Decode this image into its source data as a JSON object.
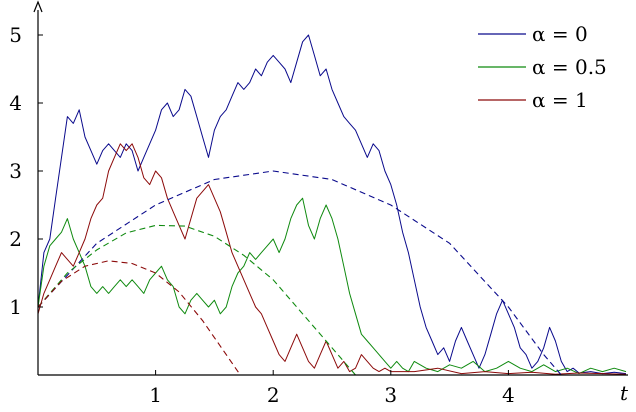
{
  "chart_data": {
    "type": "line",
    "title": "",
    "xlabel": "t",
    "ylabel": "",
    "xlim": [
      0,
      5
    ],
    "ylim": [
      0,
      5.2
    ],
    "xticks": [
      1,
      2,
      3,
      4
    ],
    "yticks": [
      1,
      2,
      3,
      4,
      5
    ],
    "legend_position": "top-right",
    "series": [
      {
        "name": "α = 0",
        "color": "#0a0a8c",
        "style": "solid",
        "points": [
          [
            0,
            1.0
          ],
          [
            0.05,
            1.8
          ],
          [
            0.1,
            2.0
          ],
          [
            0.15,
            2.6
          ],
          [
            0.2,
            3.2
          ],
          [
            0.25,
            3.8
          ],
          [
            0.3,
            3.7
          ],
          [
            0.35,
            3.9
          ],
          [
            0.4,
            3.5
          ],
          [
            0.45,
            3.3
          ],
          [
            0.5,
            3.1
          ],
          [
            0.55,
            3.3
          ],
          [
            0.6,
            3.4
          ],
          [
            0.65,
            3.3
          ],
          [
            0.7,
            3.2
          ],
          [
            0.75,
            3.4
          ],
          [
            0.8,
            3.3
          ],
          [
            0.85,
            3.0
          ],
          [
            0.9,
            3.2
          ],
          [
            0.95,
            3.4
          ],
          [
            1.0,
            3.6
          ],
          [
            1.05,
            3.9
          ],
          [
            1.1,
            4.0
          ],
          [
            1.15,
            3.8
          ],
          [
            1.2,
            3.9
          ],
          [
            1.25,
            4.2
          ],
          [
            1.3,
            4.1
          ],
          [
            1.35,
            3.8
          ],
          [
            1.4,
            3.5
          ],
          [
            1.45,
            3.2
          ],
          [
            1.5,
            3.6
          ],
          [
            1.55,
            3.8
          ],
          [
            1.6,
            3.9
          ],
          [
            1.65,
            4.1
          ],
          [
            1.7,
            4.3
          ],
          [
            1.75,
            4.2
          ],
          [
            1.8,
            4.3
          ],
          [
            1.85,
            4.5
          ],
          [
            1.9,
            4.4
          ],
          [
            1.95,
            4.6
          ],
          [
            2.0,
            4.7
          ],
          [
            2.05,
            4.6
          ],
          [
            2.1,
            4.5
          ],
          [
            2.15,
            4.3
          ],
          [
            2.2,
            4.6
          ],
          [
            2.25,
            4.9
          ],
          [
            2.3,
            5.0
          ],
          [
            2.35,
            4.7
          ],
          [
            2.4,
            4.4
          ],
          [
            2.45,
            4.5
          ],
          [
            2.5,
            4.2
          ],
          [
            2.55,
            4.0
          ],
          [
            2.6,
            3.8
          ],
          [
            2.65,
            3.7
          ],
          [
            2.7,
            3.6
          ],
          [
            2.75,
            3.4
          ],
          [
            2.8,
            3.2
          ],
          [
            2.85,
            3.4
          ],
          [
            2.9,
            3.3
          ],
          [
            2.95,
            3.0
          ],
          [
            3.0,
            2.8
          ],
          [
            3.05,
            2.5
          ],
          [
            3.1,
            2.1
          ],
          [
            3.15,
            1.8
          ],
          [
            3.2,
            1.4
          ],
          [
            3.25,
            1.0
          ],
          [
            3.3,
            0.7
          ],
          [
            3.35,
            0.5
          ],
          [
            3.4,
            0.3
          ],
          [
            3.45,
            0.4
          ],
          [
            3.5,
            0.2
          ],
          [
            3.55,
            0.5
          ],
          [
            3.6,
            0.7
          ],
          [
            3.65,
            0.5
          ],
          [
            3.7,
            0.3
          ],
          [
            3.75,
            0.1
          ],
          [
            3.8,
            0.3
          ],
          [
            3.85,
            0.6
          ],
          [
            3.9,
            0.9
          ],
          [
            3.95,
            1.1
          ],
          [
            4.0,
            0.9
          ],
          [
            4.05,
            0.7
          ],
          [
            4.1,
            0.4
          ],
          [
            4.15,
            0.3
          ],
          [
            4.2,
            0.1
          ],
          [
            4.25,
            0.2
          ],
          [
            4.3,
            0.4
          ],
          [
            4.35,
            0.7
          ],
          [
            4.4,
            0.5
          ],
          [
            4.45,
            0.2
          ],
          [
            4.5,
            0.05
          ],
          [
            4.55,
            0.1
          ],
          [
            4.6,
            0.03
          ],
          [
            4.7,
            0.05
          ],
          [
            4.8,
            0.02
          ],
          [
            4.9,
            0.04
          ],
          [
            5.0,
            0.02
          ]
        ]
      },
      {
        "name": "α = 0.5",
        "color": "#0f8a0f",
        "style": "solid",
        "points": [
          [
            0,
            1.0
          ],
          [
            0.05,
            1.6
          ],
          [
            0.1,
            1.9
          ],
          [
            0.15,
            2.0
          ],
          [
            0.2,
            2.1
          ],
          [
            0.25,
            2.3
          ],
          [
            0.3,
            2.0
          ],
          [
            0.35,
            1.8
          ],
          [
            0.4,
            1.6
          ],
          [
            0.45,
            1.3
          ],
          [
            0.5,
            1.2
          ],
          [
            0.55,
            1.3
          ],
          [
            0.6,
            1.2
          ],
          [
            0.65,
            1.3
          ],
          [
            0.7,
            1.4
          ],
          [
            0.75,
            1.3
          ],
          [
            0.8,
            1.4
          ],
          [
            0.85,
            1.3
          ],
          [
            0.9,
            1.2
          ],
          [
            0.95,
            1.4
          ],
          [
            1.0,
            1.5
          ],
          [
            1.05,
            1.6
          ],
          [
            1.1,
            1.4
          ],
          [
            1.15,
            1.3
          ],
          [
            1.2,
            1.0
          ],
          [
            1.25,
            0.9
          ],
          [
            1.3,
            1.1
          ],
          [
            1.35,
            1.2
          ],
          [
            1.4,
            1.1
          ],
          [
            1.45,
            1.0
          ],
          [
            1.5,
            1.1
          ],
          [
            1.55,
            0.9
          ],
          [
            1.6,
            1.0
          ],
          [
            1.65,
            1.3
          ],
          [
            1.7,
            1.5
          ],
          [
            1.75,
            1.6
          ],
          [
            1.8,
            1.8
          ],
          [
            1.85,
            1.7
          ],
          [
            1.9,
            1.8
          ],
          [
            1.95,
            1.9
          ],
          [
            2.0,
            2.0
          ],
          [
            2.05,
            1.8
          ],
          [
            2.1,
            2.0
          ],
          [
            2.15,
            2.3
          ],
          [
            2.2,
            2.5
          ],
          [
            2.25,
            2.6
          ],
          [
            2.3,
            2.2
          ],
          [
            2.35,
            2.0
          ],
          [
            2.4,
            2.3
          ],
          [
            2.45,
            2.5
          ],
          [
            2.5,
            2.3
          ],
          [
            2.55,
            2.0
          ],
          [
            2.6,
            1.6
          ],
          [
            2.65,
            1.2
          ],
          [
            2.7,
            0.9
          ],
          [
            2.75,
            0.6
          ],
          [
            2.8,
            0.5
          ],
          [
            2.85,
            0.4
          ],
          [
            2.9,
            0.3
          ],
          [
            2.95,
            0.2
          ],
          [
            3.0,
            0.1
          ],
          [
            3.05,
            0.2
          ],
          [
            3.1,
            0.1
          ],
          [
            3.15,
            0.05
          ],
          [
            3.2,
            0.2
          ],
          [
            3.3,
            0.1
          ],
          [
            3.4,
            0.05
          ],
          [
            3.5,
            0.15
          ],
          [
            3.6,
            0.1
          ],
          [
            3.7,
            0.2
          ],
          [
            3.8,
            0.05
          ],
          [
            3.9,
            0.1
          ],
          [
            4.0,
            0.2
          ],
          [
            4.1,
            0.1
          ],
          [
            4.2,
            0.05
          ],
          [
            4.3,
            0.15
          ],
          [
            4.4,
            0.05
          ],
          [
            4.5,
            0.1
          ],
          [
            4.6,
            0.02
          ],
          [
            4.7,
            0.1
          ],
          [
            4.8,
            0.05
          ],
          [
            4.9,
            0.1
          ],
          [
            5.0,
            0.05
          ]
        ]
      },
      {
        "name": "α = 1",
        "color": "#8c0a0a",
        "style": "solid",
        "points": [
          [
            0,
            0.9
          ],
          [
            0.05,
            1.2
          ],
          [
            0.1,
            1.4
          ],
          [
            0.15,
            1.6
          ],
          [
            0.2,
            1.8
          ],
          [
            0.25,
            1.7
          ],
          [
            0.3,
            1.6
          ],
          [
            0.35,
            1.8
          ],
          [
            0.4,
            2.0
          ],
          [
            0.45,
            2.3
          ],
          [
            0.5,
            2.5
          ],
          [
            0.55,
            2.6
          ],
          [
            0.6,
            3.0
          ],
          [
            0.65,
            3.2
          ],
          [
            0.7,
            3.4
          ],
          [
            0.75,
            3.3
          ],
          [
            0.8,
            3.4
          ],
          [
            0.85,
            3.2
          ],
          [
            0.9,
            2.9
          ],
          [
            0.95,
            2.8
          ],
          [
            1.0,
            3.0
          ],
          [
            1.05,
            2.9
          ],
          [
            1.1,
            2.6
          ],
          [
            1.15,
            2.4
          ],
          [
            1.2,
            2.2
          ],
          [
            1.25,
            2.0
          ],
          [
            1.3,
            2.3
          ],
          [
            1.35,
            2.6
          ],
          [
            1.4,
            2.7
          ],
          [
            1.45,
            2.8
          ],
          [
            1.5,
            2.6
          ],
          [
            1.55,
            2.4
          ],
          [
            1.6,
            2.1
          ],
          [
            1.65,
            1.8
          ],
          [
            1.7,
            1.6
          ],
          [
            1.75,
            1.4
          ],
          [
            1.8,
            1.2
          ],
          [
            1.85,
            1.0
          ],
          [
            1.9,
            0.9
          ],
          [
            1.95,
            0.7
          ],
          [
            2.0,
            0.5
          ],
          [
            2.05,
            0.3
          ],
          [
            2.1,
            0.2
          ],
          [
            2.15,
            0.4
          ],
          [
            2.2,
            0.6
          ],
          [
            2.25,
            0.4
          ],
          [
            2.3,
            0.2
          ],
          [
            2.35,
            0.1
          ],
          [
            2.4,
            0.3
          ],
          [
            2.45,
            0.5
          ],
          [
            2.5,
            0.3
          ],
          [
            2.55,
            0.1
          ],
          [
            2.6,
            0.2
          ],
          [
            2.65,
            0.05
          ],
          [
            2.7,
            0.1
          ],
          [
            2.75,
            0.3
          ],
          [
            2.8,
            0.2
          ],
          [
            2.85,
            0.1
          ],
          [
            2.9,
            0.05
          ],
          [
            2.95,
            0.1
          ],
          [
            3.0,
            0.05
          ],
          [
            3.2,
            0.05
          ],
          [
            3.4,
            0.1
          ],
          [
            3.6,
            0.02
          ],
          [
            3.8,
            0.05
          ],
          [
            4.0,
            0.02
          ],
          [
            4.2,
            0.04
          ],
          [
            4.4,
            0.01
          ],
          [
            4.6,
            0.03
          ],
          [
            4.8,
            0.02
          ],
          [
            5.0,
            0.01
          ]
        ]
      },
      {
        "name": "",
        "color": "#0a0a8c",
        "style": "dashed",
        "points": [
          [
            0,
            1.0
          ],
          [
            0.5,
            1.9375
          ],
          [
            1.0,
            2.5
          ],
          [
            1.5,
            2.875
          ],
          [
            2.0,
            3.0
          ],
          [
            2.5,
            2.875
          ],
          [
            3.0,
            2.5
          ],
          [
            3.5,
            1.9375
          ],
          [
            4.0,
            1.0
          ],
          [
            4.3,
            0.3
          ],
          [
            4.45,
            0.0
          ]
        ]
      },
      {
        "name": "",
        "color": "#0f8a0f",
        "style": "dashed",
        "points": [
          [
            0,
            1.0
          ],
          [
            0.25,
            1.5
          ],
          [
            0.5,
            1.84
          ],
          [
            0.75,
            2.09
          ],
          [
            1.0,
            2.2
          ],
          [
            1.25,
            2.19
          ],
          [
            1.5,
            2.04
          ],
          [
            1.75,
            1.76
          ],
          [
            2.0,
            1.4
          ],
          [
            2.25,
            0.9
          ],
          [
            2.5,
            0.4
          ],
          [
            2.7,
            0.0
          ]
        ]
      },
      {
        "name": "",
        "color": "#8c0a0a",
        "style": "dashed",
        "points": [
          [
            0,
            1.0
          ],
          [
            0.2,
            1.38
          ],
          [
            0.4,
            1.6
          ],
          [
            0.6,
            1.68
          ],
          [
            0.8,
            1.64
          ],
          [
            1.0,
            1.5
          ],
          [
            1.2,
            1.22
          ],
          [
            1.4,
            0.8
          ],
          [
            1.6,
            0.3
          ],
          [
            1.72,
            0.0
          ]
        ]
      }
    ]
  }
}
